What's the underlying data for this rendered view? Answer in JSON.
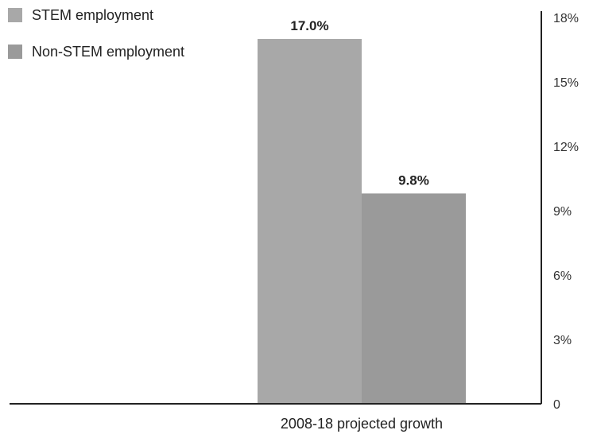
{
  "chart_data": {
    "type": "bar",
    "categories": [
      "2008-18 projected growth"
    ],
    "series": [
      {
        "name": "STEM employment",
        "values": [
          17.0
        ],
        "label": "17.0%",
        "color": "#a8a8a8"
      },
      {
        "name": "Non-STEM employment",
        "values": [
          9.8
        ],
        "label": "9.8%",
        "color": "#9a9a9a"
      }
    ],
    "yaxis_position": "right",
    "ylim": [
      0,
      18
    ],
    "yticks": [
      0,
      3,
      6,
      9,
      12,
      15,
      18
    ],
    "ytick_labels": [
      "0",
      "3%",
      "6%",
      "9%",
      "12%",
      "15%",
      "18%"
    ],
    "legend_position": "top-left",
    "grid": false,
    "title": "",
    "xlabel": "",
    "ylabel": "",
    "axis_color": "#222222"
  }
}
